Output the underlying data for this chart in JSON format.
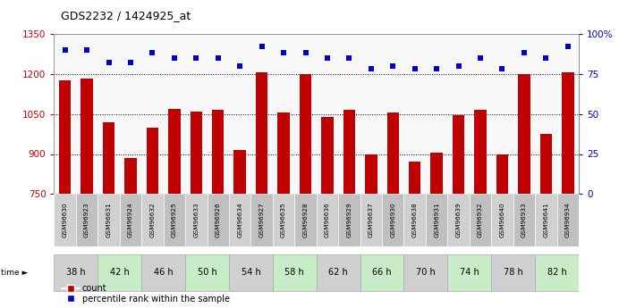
{
  "title": "GDS2232 / 1424925_at",
  "gsm_labels": [
    "GSM96630",
    "GSM96923",
    "GSM96631",
    "GSM96924",
    "GSM96632",
    "GSM96925",
    "GSM96633",
    "GSM96926",
    "GSM96634",
    "GSM96927",
    "GSM96635",
    "GSM96928",
    "GSM96636",
    "GSM96929",
    "GSM96637",
    "GSM96930",
    "GSM96638",
    "GSM96931",
    "GSM96639",
    "GSM96932",
    "GSM96640",
    "GSM96933",
    "GSM96641",
    "GSM96934"
  ],
  "time_labels": [
    "38 h",
    "42 h",
    "46 h",
    "50 h",
    "54 h",
    "58 h",
    "62 h",
    "66 h",
    "70 h",
    "74 h",
    "78 h",
    "82 h"
  ],
  "bar_values": [
    1175,
    1182,
    1020,
    885,
    1000,
    1070,
    1060,
    1065,
    915,
    1205,
    1055,
    1200,
    1040,
    1065,
    900,
    1055,
    870,
    905,
    1045,
    1065,
    900,
    1200,
    975,
    1205
  ],
  "percentile_values": [
    90,
    90,
    82,
    82,
    88,
    85,
    85,
    85,
    80,
    92,
    88,
    88,
    85,
    85,
    78,
    80,
    78,
    78,
    80,
    85,
    78,
    88,
    85,
    92
  ],
  "bar_color": "#C00000",
  "dot_color": "#0000CC",
  "ylim_left": [
    750,
    1350
  ],
  "ylim_right": [
    0,
    100
  ],
  "yticks_left": [
    750,
    900,
    1050,
    1200,
    1350
  ],
  "yticks_right": [
    0,
    25,
    50,
    75,
    100
  ],
  "grid_values": [
    900,
    1050,
    1200
  ],
  "time_group_colors": [
    "#d0d0d0",
    "#c8ecc8",
    "#d0d0d0",
    "#c8ecc8",
    "#d0d0d0",
    "#c8ecc8",
    "#d0d0d0",
    "#c8ecc8",
    "#d0d0d0",
    "#c8ecc8",
    "#d0d0d0",
    "#c8ecc8"
  ],
  "bg_color": "#f0f0f0"
}
